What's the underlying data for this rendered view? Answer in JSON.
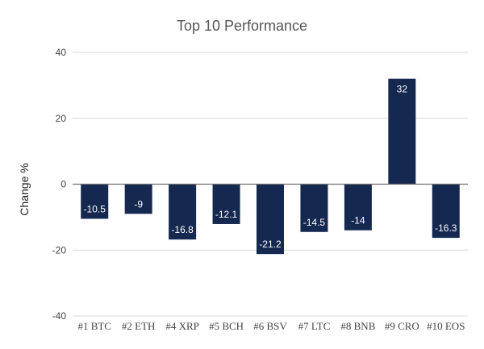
{
  "chart_data": {
    "type": "bar",
    "title": "Top 10 Performance",
    "xlabel": "",
    "ylabel": "Change %",
    "ylim": [
      -40,
      40
    ],
    "yticks": [
      40,
      20,
      0,
      -20,
      -40
    ],
    "grid": true,
    "legend": "none",
    "categories": [
      "#1 BTC",
      "#2 ETH",
      "#4 XRP",
      "#5 BCH",
      "#6 BSV",
      "#7 LTC",
      "#8 BNB",
      "#9 CRO",
      "#10 EOS"
    ],
    "values": [
      -10.5,
      -9,
      -16.8,
      -12.1,
      -21.2,
      -14.5,
      -14,
      32,
      -16.3
    ],
    "data_labels": [
      "-10.5",
      "-9",
      "-16.8",
      "-12.1",
      "-21.2",
      "-14.5",
      "-14",
      "32",
      "-16.3"
    ],
    "bar_color": "#142850",
    "data_label_color": "#ffffff"
  }
}
